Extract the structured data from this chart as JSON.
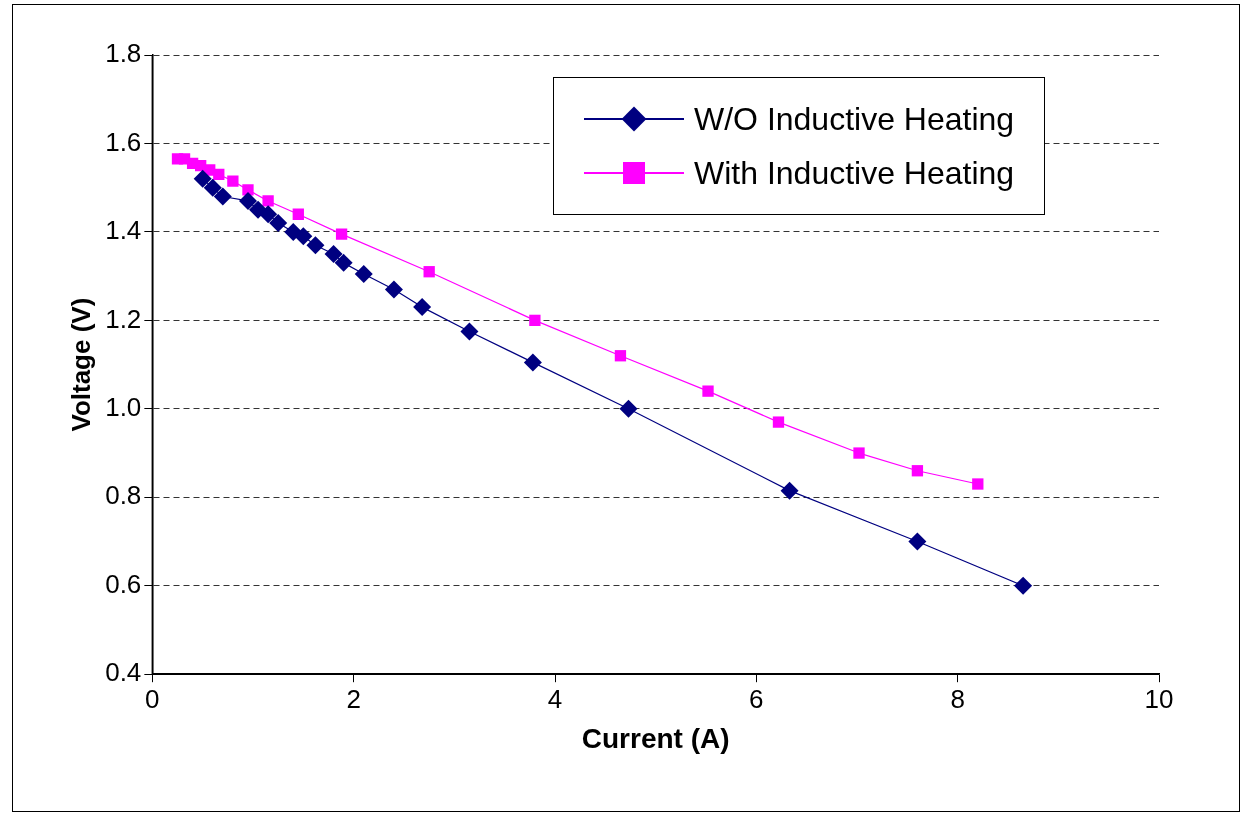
{
  "chart_data": {
    "type": "line",
    "xlabel": "Current (A)",
    "ylabel": "Voltage (V)",
    "xlim": [
      0,
      10
    ],
    "xticks": [
      0,
      2,
      4,
      6,
      8,
      10
    ],
    "ylim": [
      0.4,
      1.8
    ],
    "yticks": [
      {
        "value": 0.4,
        "label": "0.4"
      },
      {
        "value": 0.6,
        "label": "0.6"
      },
      {
        "value": 0.8,
        "label": "0.8"
      },
      {
        "value": 1.0,
        "label": "1.0"
      },
      {
        "value": 1.2,
        "label": "1.2"
      },
      {
        "value": 1.4,
        "label": "1.4"
      },
      {
        "value": 1.6,
        "label": "1.6"
      },
      {
        "value": 1.8,
        "label": "1.8"
      }
    ],
    "grid": "y",
    "legend": "top right",
    "series": [
      {
        "name": "W/O Inductive Heating",
        "color": "#000080",
        "marker": "diamond",
        "x": [
          0.5,
          0.6,
          0.7,
          0.95,
          1.05,
          1.15,
          1.25,
          1.4,
          1.5,
          1.62,
          1.8,
          1.9,
          2.1,
          2.4,
          2.68,
          3.15,
          3.78,
          4.73,
          6.33,
          7.6,
          8.65
        ],
        "values": [
          1.52,
          1.5,
          1.48,
          1.47,
          1.45,
          1.44,
          1.42,
          1.4,
          1.39,
          1.37,
          1.35,
          1.33,
          1.305,
          1.27,
          1.23,
          1.175,
          1.105,
          1.0,
          0.815,
          0.7,
          0.6
        ]
      },
      {
        "name": "With Inductive Heating",
        "color": "#ff00ff",
        "marker": "square",
        "x": [
          0.25,
          0.32,
          0.4,
          0.48,
          0.57,
          0.66,
          0.8,
          0.95,
          1.15,
          1.45,
          1.88,
          2.75,
          3.8,
          4.65,
          5.52,
          6.22,
          7.02,
          7.6,
          8.2
        ],
        "values": [
          1.565,
          1.565,
          1.555,
          1.55,
          1.54,
          1.53,
          1.515,
          1.495,
          1.47,
          1.44,
          1.395,
          1.31,
          1.2,
          1.12,
          1.04,
          0.97,
          0.9,
          0.86,
          0.83
        ]
      }
    ]
  }
}
